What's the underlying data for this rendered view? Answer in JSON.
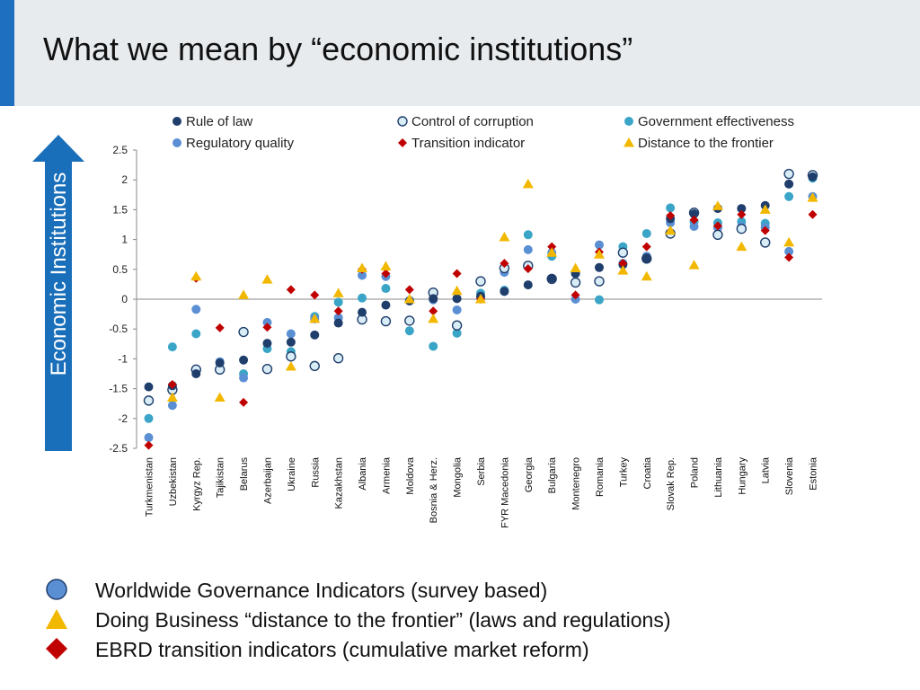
{
  "header": {
    "title": "What we mean by “economic institutions”"
  },
  "arrow": {
    "label": "Economic Institutions",
    "color": "#1a6fba"
  },
  "chart_data": {
    "type": "scatter",
    "title": "",
    "xlabel": "",
    "ylabel": "",
    "ylim": [
      -2.5,
      2.5
    ],
    "yticks": [
      2.5,
      2,
      1.5,
      1,
      0.5,
      0,
      -0.5,
      -1,
      -1.5,
      -2,
      -2.5
    ],
    "ytick_labels": [
      "2.5",
      "2",
      "1.5",
      "1",
      "0.5",
      "0",
      "-0.5",
      "-1",
      "-1.5",
      "-2",
      "-2.5"
    ],
    "grid": false,
    "legend_position": "top",
    "categories": [
      "Turkmenistan",
      "Uzbekistan",
      "Kyrgyz Rep.",
      "Tajikistan",
      "Belarus",
      "Azerbaijan",
      "Ukraine",
      "Russia",
      "Kazakhstan",
      "Albania",
      "Armenia",
      "Moldova",
      "Bosnia & Herz.",
      "Mongolia",
      "Serbia",
      "FYR Macedonia",
      "Georgia",
      "Bulgaria",
      "Montenegro",
      "Romania",
      "Turkey",
      "Croatia",
      "Slovak Rep.",
      "Poland",
      "Lithuania",
      "Hungary",
      "Latvia",
      "Slovenia",
      "Estonia"
    ],
    "series": [
      {
        "name": "Rule of law",
        "marker": "circle",
        "color": "#1f3e6b",
        "values": [
          -1.47,
          -1.45,
          -1.25,
          -1.07,
          -1.02,
          -0.74,
          -0.72,
          -0.6,
          -0.4,
          -0.22,
          -0.1,
          -0.03,
          0.01,
          0.01,
          0.05,
          0.13,
          0.24,
          0.35,
          0.43,
          0.53,
          0.58,
          0.68,
          1.35,
          1.43,
          1.52,
          1.52,
          1.57,
          1.93,
          2.05
        ]
      },
      {
        "name": "Control of corruption",
        "marker": "circle-open",
        "color": "#d9edf7",
        "values": [
          -1.7,
          -1.52,
          -1.18,
          -1.18,
          -0.55,
          -1.17,
          -0.96,
          -1.12,
          -0.99,
          -0.34,
          -0.37,
          -0.36,
          0.11,
          -0.44,
          0.3,
          0.52,
          0.56,
          0.34,
          0.28,
          0.3,
          0.78,
          0.68,
          1.1,
          1.45,
          1.08,
          1.18,
          0.95,
          2.1,
          2.08
        ]
      },
      {
        "name": "Government effectiveness",
        "marker": "circle",
        "color": "#3aa5c7",
        "values": [
          -2.0,
          -0.8,
          -0.58,
          -1.05,
          -1.25,
          -0.83,
          -0.88,
          -0.29,
          -0.05,
          0.02,
          0.18,
          -0.53,
          -0.79,
          -0.57,
          0.1,
          0.15,
          1.08,
          0.72,
          0.43,
          -0.01,
          0.88,
          1.1,
          1.53,
          1.3,
          1.28,
          1.3,
          1.27,
          1.72,
          2.03
        ]
      },
      {
        "name": "Regulatory quality",
        "marker": "circle",
        "color": "#5b8fd4",
        "values": [
          -2.32,
          -1.78,
          -0.17,
          -1.05,
          -1.32,
          -0.39,
          -0.58,
          -0.33,
          -0.31,
          0.4,
          0.38,
          -0.02,
          -0.01,
          -0.18,
          0.03,
          0.45,
          0.83,
          0.78,
          0.0,
          0.91,
          0.6,
          0.72,
          1.28,
          1.22,
          1.2,
          1.22,
          1.2,
          0.8,
          1.72
        ]
      },
      {
        "name": "Transition indicator",
        "marker": "diamond",
        "color": "#c00000",
        "values": [
          -2.45,
          -1.43,
          0.35,
          -0.48,
          -1.73,
          -0.47,
          0.16,
          0.07,
          -0.2,
          0.5,
          0.43,
          0.16,
          -0.2,
          0.43,
          0.0,
          0.6,
          0.51,
          0.88,
          0.07,
          0.79,
          0.6,
          0.88,
          1.4,
          1.33,
          1.23,
          1.42,
          1.15,
          0.7,
          1.42
        ]
      },
      {
        "name": "Distance to the frontier",
        "marker": "triangle",
        "color": "#f2b800",
        "values": [
          null,
          -1.65,
          0.38,
          -1.65,
          0.07,
          0.33,
          -1.13,
          -0.33,
          0.1,
          0.52,
          0.55,
          0.0,
          -0.33,
          0.14,
          0.0,
          1.04,
          1.93,
          0.78,
          0.52,
          0.75,
          0.48,
          0.38,
          1.15,
          0.57,
          1.56,
          0.88,
          1.5,
          0.95,
          1.7
        ]
      }
    ]
  },
  "bottom_legend": [
    {
      "icon": "blue-circle-icon",
      "color": "#5b8fd4",
      "text": "Worldwide Governance Indicators (survey based)"
    },
    {
      "icon": "yellow-triangle-icon",
      "color": "#f2b800",
      "text": "Doing Business “distance to the frontier” (laws and regulations)"
    },
    {
      "icon": "red-diamond-icon",
      "color": "#c00000",
      "text": "EBRD transition indicators (cumulative market reform)"
    }
  ]
}
